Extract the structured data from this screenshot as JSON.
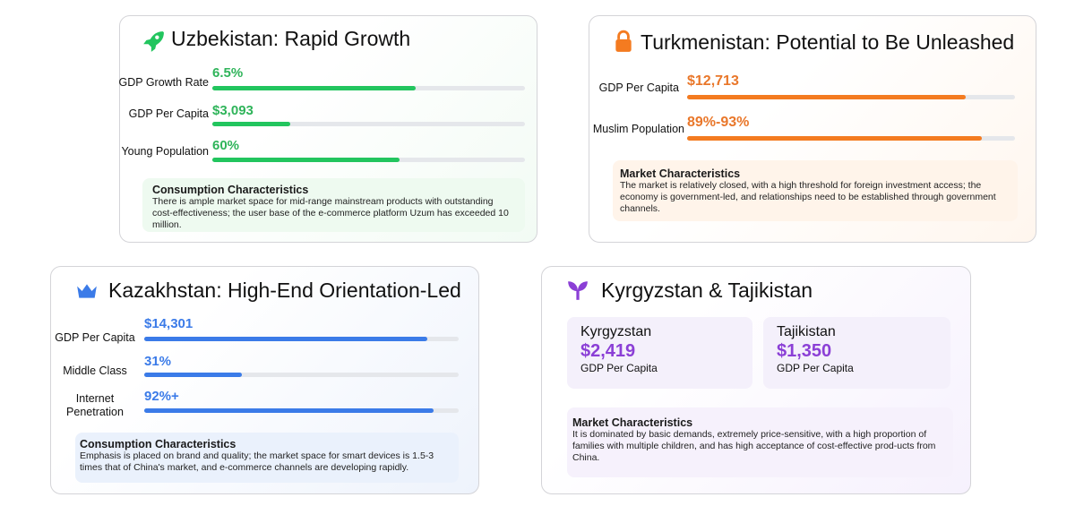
{
  "colors": {
    "green": "#22c55e",
    "orange": "#f47b20",
    "blue": "#3b7be8",
    "purple": "#8b3fd6"
  },
  "uzbekistan": {
    "icon": "rocket-icon",
    "title": "Uzbekistan: Rapid Growth",
    "metrics": [
      {
        "label": "GDP Growth Rate",
        "value": "6.5%",
        "fill": 0.65
      },
      {
        "label": "GDP Per Capita",
        "value": "$3,093",
        "fill": 0.25
      },
      {
        "label": "Young Population",
        "value": "60%",
        "fill": 0.6
      }
    ],
    "box_title": "Consumption Characteristics",
    "box_text": "There is ample market space for mid-range mainstream products with outstanding cost-effectiveness; the user base of the e-commerce platform Uzum has exceeded 10 million."
  },
  "turkmenistan": {
    "icon": "lock-icon",
    "title": "Turkmenistan: Potential to Be Unleashed",
    "metrics": [
      {
        "label": "GDP Per Capita",
        "value": "$12,713",
        "fill": 0.85
      },
      {
        "label": "Muslim Population",
        "value": "89%-93%",
        "fill": 0.9
      }
    ],
    "box_title": "Market Characteristics",
    "box_text": "The market is relatively closed, with a high threshold for foreign investment access; the economy is government-led, and relationships need to be established through government channels."
  },
  "kazakhstan": {
    "icon": "crown-icon",
    "title": "Kazakhstan: High-End Orientation-Led",
    "metrics": [
      {
        "label": "GDP Per Capita",
        "value": "$14,301",
        "fill": 0.9
      },
      {
        "label": "Middle Class",
        "value": "31%",
        "fill": 0.31
      },
      {
        "label": "Internet Penetration",
        "value": "92%+",
        "fill": 0.92
      }
    ],
    "box_title": "Consumption Characteristics",
    "box_text": "Emphasis is placed on brand and quality; the market space for smart devices is 1.5-3 times that of China's market, and e-commerce channels are developing rapidly."
  },
  "kyrgyz_tajik": {
    "icon": "sprout-icon",
    "title": "Kyrgyzstan & Tajikistan",
    "countries": [
      {
        "name": "Kyrgyzstan",
        "value": "$2,419",
        "label": "GDP Per Capita"
      },
      {
        "name": "Tajikistan",
        "value": "$1,350",
        "label": "GDP Per Capita"
      }
    ],
    "box_title": "Market Characteristics",
    "box_text": "It is dominated by basic demands, extremely price-sensitive, with a high proportion of families with multiple children, and has high acceptance of cost-effective prod-ucts from China."
  }
}
